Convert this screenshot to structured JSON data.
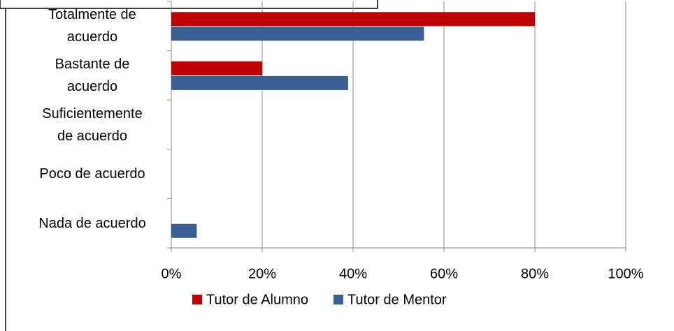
{
  "chart_data": {
    "type": "hbar",
    "categories": [
      "Totalmente de\nacuerdo",
      "Bastante de\nacuerdo",
      "Suficientemente\nde acuerdo",
      "Poco de acuerdo",
      "Nada de acuerdo"
    ],
    "series": [
      {
        "name": "Tutor de Alumno",
        "color": "#c00000",
        "values": [
          80,
          20,
          0,
          0,
          0
        ]
      },
      {
        "name": "Tutor de Mentor",
        "color": "#3a5f95",
        "values": [
          55.6,
          38.9,
          0,
          0,
          5.6
        ]
      }
    ],
    "xlim": [
      0,
      100
    ],
    "xticks": [
      {
        "value": 0,
        "label": "0%"
      },
      {
        "value": 20,
        "label": "20%"
      },
      {
        "value": 40,
        "label": "40%"
      },
      {
        "value": 60,
        "label": "60%"
      },
      {
        "value": 80,
        "label": "80%"
      },
      {
        "value": 100,
        "label": "100%"
      }
    ],
    "grid": true,
    "legend": "bottom"
  }
}
